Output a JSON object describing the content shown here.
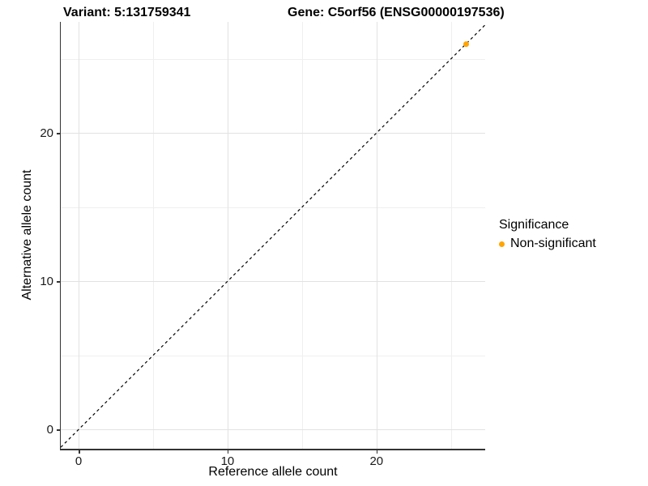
{
  "chart_data": {
    "type": "scatter",
    "title_left": "Variant: 5:131759341",
    "title_right": "Gene: C5orf56 (ENSG00000197536)",
    "xlabel": "Reference allele count",
    "ylabel": "Alternative allele count",
    "xlim": [
      -1.2,
      27.3
    ],
    "ylim": [
      -1.3,
      27.5
    ],
    "x_ticks_major": [
      0,
      10,
      20
    ],
    "x_ticks_minor": [
      5,
      15,
      25
    ],
    "y_ticks_major": [
      0,
      10,
      20
    ],
    "y_ticks_minor": [
      5,
      15,
      25
    ],
    "grid": true,
    "series": [
      {
        "name": "Non-significant",
        "color": "#FFA500",
        "points": [
          [
            26,
            26
          ]
        ]
      }
    ],
    "reference_line": {
      "slope": 1,
      "intercept": 0,
      "style": "dashed",
      "color": "#000000"
    },
    "legend": {
      "title": "Significance",
      "position": "right",
      "items": [
        {
          "label": "Non-significant",
          "color": "#FFA500"
        }
      ]
    },
    "colors": {
      "background": "#FFFFFF",
      "grid_major": "#E2E2E2",
      "grid_minor": "#EFEFEF",
      "axis_line": "#333333",
      "text": "#1A1A1A",
      "point": "#FFA500"
    }
  }
}
